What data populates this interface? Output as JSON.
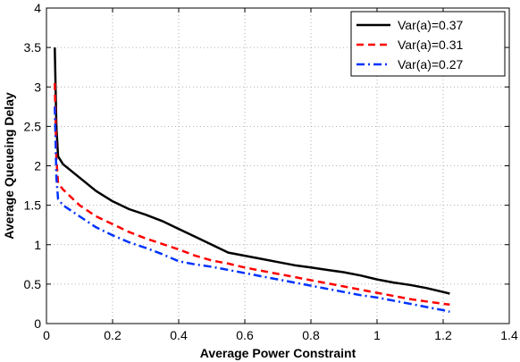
{
  "chart_data": {
    "type": "line",
    "title": "",
    "xlabel": "Average Power Constraint",
    "ylabel": "Average Queueing Delay",
    "xlim": [
      0,
      1.4
    ],
    "ylim": [
      0,
      4
    ],
    "xticks": [
      "0",
      "0.2",
      "0.4",
      "0.6",
      "0.8",
      "1",
      "1.2",
      "1.4"
    ],
    "yticks": [
      "0",
      "0.5",
      "1",
      "1.5",
      "2",
      "2.5",
      "3",
      "3.5",
      "4"
    ],
    "grid": true,
    "legend_position": "top-right",
    "series": [
      {
        "name": "Var(a)=0.37",
        "color": "#000000",
        "dash": "solid",
        "x": [
          0.025,
          0.03,
          0.035,
          0.05,
          0.1,
          0.15,
          0.2,
          0.25,
          0.3,
          0.35,
          0.4,
          0.45,
          0.5,
          0.55,
          0.6,
          0.65,
          0.7,
          0.75,
          0.8,
          0.85,
          0.9,
          0.95,
          1.0,
          1.05,
          1.1,
          1.15,
          1.2,
          1.22
        ],
        "y": [
          3.5,
          2.5,
          2.12,
          2.02,
          1.85,
          1.68,
          1.55,
          1.45,
          1.38,
          1.3,
          1.2,
          1.1,
          1.0,
          0.9,
          0.86,
          0.82,
          0.78,
          0.74,
          0.71,
          0.68,
          0.65,
          0.61,
          0.56,
          0.52,
          0.49,
          0.45,
          0.4,
          0.38
        ]
      },
      {
        "name": "Var(a)=0.31",
        "color": "#ff0000",
        "dash": "dashed",
        "x": [
          0.025,
          0.03,
          0.035,
          0.05,
          0.1,
          0.15,
          0.2,
          0.25,
          0.3,
          0.35,
          0.4,
          0.45,
          0.5,
          0.55,
          0.6,
          0.65,
          0.7,
          0.75,
          0.8,
          0.85,
          0.9,
          0.95,
          1.0,
          1.05,
          1.1,
          1.15,
          1.2,
          1.22
        ],
        "y": [
          3.05,
          2.1,
          1.78,
          1.7,
          1.5,
          1.36,
          1.26,
          1.16,
          1.08,
          1.01,
          0.94,
          0.86,
          0.8,
          0.76,
          0.71,
          0.67,
          0.63,
          0.59,
          0.55,
          0.51,
          0.47,
          0.43,
          0.39,
          0.35,
          0.31,
          0.28,
          0.25,
          0.24
        ]
      },
      {
        "name": "Var(a)=0.27",
        "color": "#0033ff",
        "dash": "dashdot",
        "x": [
          0.025,
          0.03,
          0.035,
          0.05,
          0.1,
          0.15,
          0.2,
          0.25,
          0.3,
          0.35,
          0.4,
          0.45,
          0.5,
          0.55,
          0.6,
          0.65,
          0.7,
          0.75,
          0.8,
          0.85,
          0.9,
          0.95,
          1.0,
          1.05,
          1.1,
          1.15,
          1.2,
          1.22
        ],
        "y": [
          2.75,
          1.85,
          1.58,
          1.5,
          1.36,
          1.22,
          1.12,
          1.03,
          0.96,
          0.88,
          0.79,
          0.75,
          0.72,
          0.68,
          0.64,
          0.6,
          0.56,
          0.52,
          0.48,
          0.44,
          0.4,
          0.36,
          0.33,
          0.29,
          0.25,
          0.21,
          0.17,
          0.15
        ]
      }
    ]
  }
}
